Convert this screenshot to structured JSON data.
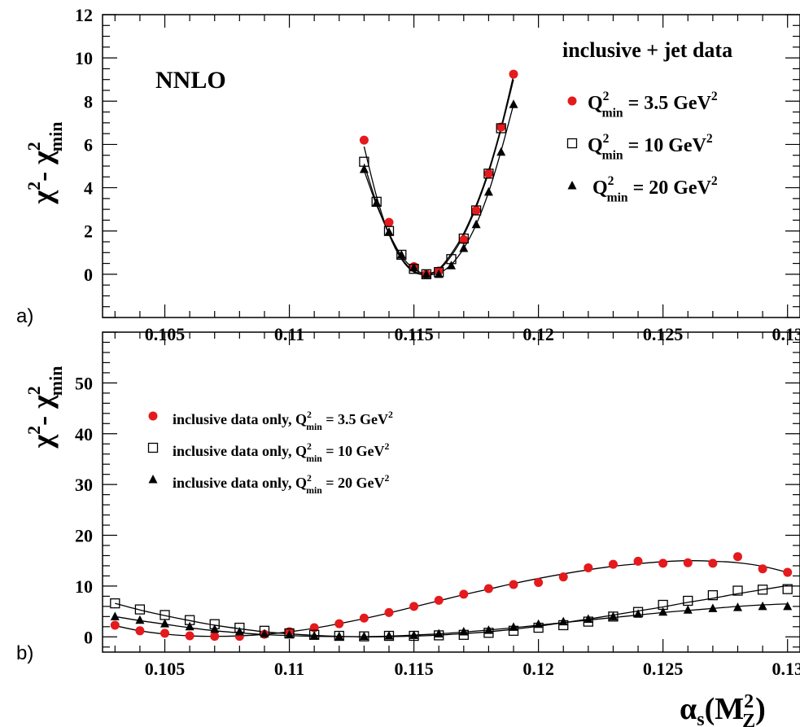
{
  "chart_data": [
    {
      "panel_label": "a)",
      "type": "scatter",
      "ylabel": {
        "main": "χ",
        "sup1": "2",
        "dash": "- χ",
        "sup2": "2",
        "sub": "min"
      },
      "xlim": [
        0.1025,
        0.1305
      ],
      "ylim": [
        -2,
        12
      ],
      "xticks": [
        {
          "v": 0.105,
          "label": "0.105"
        },
        {
          "v": 0.11,
          "label": "0.11"
        },
        {
          "v": 0.115,
          "label": "0.115"
        },
        {
          "v": 0.12,
          "label": "0.12"
        },
        {
          "v": 0.125,
          "label": "0.125"
        },
        {
          "v": 0.13,
          "label": "0.13"
        }
      ],
      "yticks": [
        0,
        2,
        4,
        6,
        8,
        10,
        12
      ],
      "annotation": "NNLO",
      "legend_title": "inclusive + jet data",
      "legend_placement": "top-right",
      "series": [
        {
          "legend": {
            "pre": "Q",
            "sup": "2",
            "sub": "min",
            "post": " = 3.5 GeV",
            "sup2": "2"
          },
          "marker": "circle",
          "color": "#e41a1c",
          "x": [
            0.113,
            0.114,
            0.115,
            0.1155,
            0.116,
            0.117,
            0.1175,
            0.118,
            0.1185,
            0.119
          ],
          "y": [
            6.2,
            2.4,
            0.35,
            0.0,
            0.15,
            1.6,
            2.95,
            4.65,
            6.8,
            9.25
          ],
          "curve_x": [
            0.113,
            0.1135,
            0.114,
            0.1145,
            0.115,
            0.1155,
            0.116,
            0.1165,
            0.117,
            0.1175,
            0.118,
            0.1185,
            0.119
          ],
          "curve_y": [
            5.9,
            3.6,
            1.85,
            0.7,
            0.1,
            0.0,
            0.25,
            0.95,
            1.9,
            3.2,
            4.8,
            6.8,
            9.2
          ]
        },
        {
          "legend": {
            "pre": "Q",
            "sup": "2",
            "sub": "min",
            "post": " = 10 GeV",
            "sup2": "2"
          },
          "marker": "square",
          "color": "#000000",
          "x": [
            0.113,
            0.1135,
            0.114,
            0.1145,
            0.115,
            0.1155,
            0.116,
            0.1165,
            0.117,
            0.1175,
            0.118,
            0.1185
          ],
          "y": [
            5.2,
            3.35,
            2.0,
            0.9,
            0.25,
            0.0,
            0.1,
            0.7,
            1.65,
            2.95,
            4.65,
            6.75
          ],
          "curve_x": [
            0.113,
            0.1135,
            0.114,
            0.1145,
            0.115,
            0.1155,
            0.116,
            0.1165,
            0.117,
            0.1175,
            0.118,
            0.1185,
            0.119
          ],
          "curve_y": [
            5.1,
            3.3,
            1.85,
            0.75,
            0.15,
            0.0,
            0.2,
            0.85,
            1.8,
            3.1,
            4.7,
            6.7,
            9.0
          ]
        },
        {
          "legend": {
            "pre": "Q",
            "sup": "2",
            "sub": "min",
            "post": " = 20 GeV",
            "sup2": "2"
          },
          "marker": "triangle",
          "color": "#000000",
          "x": [
            0.113,
            0.1135,
            0.114,
            0.1145,
            0.115,
            0.1155,
            0.116,
            0.1165,
            0.117,
            0.1175,
            0.118,
            0.1185,
            0.119
          ],
          "y": [
            4.85,
            3.3,
            1.95,
            0.9,
            0.3,
            0.0,
            0.0,
            0.4,
            1.2,
            2.3,
            3.8,
            5.65,
            7.85
          ],
          "curve_x": [
            0.113,
            0.1135,
            0.114,
            0.1145,
            0.115,
            0.1155,
            0.116,
            0.1165,
            0.117,
            0.1175,
            0.118,
            0.1185,
            0.119
          ],
          "curve_y": [
            4.8,
            3.2,
            1.9,
            0.85,
            0.25,
            0.0,
            0.05,
            0.45,
            1.2,
            2.3,
            3.8,
            5.7,
            7.85
          ]
        }
      ]
    },
    {
      "panel_label": "b)",
      "type": "scatter",
      "ylabel": {
        "main": "χ",
        "sup1": "2",
        "dash": "- χ",
        "sup2": "2",
        "sub": "min"
      },
      "xlabel": {
        "main": "α",
        "sub": "s",
        "open": "(M",
        "sup": "2",
        "sub2": "Z",
        "close": ")"
      },
      "xlim": [
        0.1025,
        0.1305
      ],
      "ylim": [
        -3,
        60
      ],
      "xticks": [
        {
          "v": 0.105,
          "label": "0.105"
        },
        {
          "v": 0.11,
          "label": "0.11"
        },
        {
          "v": 0.115,
          "label": "0.115"
        },
        {
          "v": 0.12,
          "label": "0.12"
        },
        {
          "v": 0.125,
          "label": "0.125"
        },
        {
          "v": 0.13,
          "label": "0.13"
        }
      ],
      "yticks": [
        0,
        10,
        20,
        30,
        40,
        50
      ],
      "legend_placement": "top-left",
      "series": [
        {
          "legend": {
            "pre": "inclusive data only, Q",
            "sup": "2",
            "sub": "min",
            "post": " =  3.5 GeV",
            "sup2": "2"
          },
          "marker": "circle",
          "color": "#e41a1c",
          "x": [
            0.103,
            0.104,
            0.105,
            0.106,
            0.107,
            0.108,
            0.109,
            0.11,
            0.111,
            0.112,
            0.113,
            0.114,
            0.115,
            0.116,
            0.117,
            0.118,
            0.119,
            0.12,
            0.121,
            0.122,
            0.123,
            0.124,
            0.125,
            0.126,
            0.127,
            0.128,
            0.129,
            0.13
          ],
          "y": [
            2.3,
            1.2,
            0.7,
            0.2,
            0.1,
            0.1,
            0.5,
            1.0,
            1.8,
            2.6,
            3.7,
            4.8,
            6.0,
            7.2,
            8.4,
            9.5,
            10.3,
            10.7,
            11.8,
            13.6,
            14.3,
            14.9,
            14.5,
            14.6,
            14.5,
            15.8,
            13.4,
            12.7
          ],
          "curve_x": [
            0.103,
            0.104,
            0.105,
            0.106,
            0.107,
            0.108,
            0.109,
            0.11,
            0.111,
            0.112,
            0.113,
            0.114,
            0.115,
            0.116,
            0.117,
            0.118,
            0.119,
            0.12,
            0.121,
            0.122,
            0.123,
            0.124,
            0.125,
            0.126,
            0.127,
            0.128,
            0.129,
            0.13
          ],
          "curve_y": [
            2.2,
            1.2,
            0.55,
            0.2,
            0.1,
            0.2,
            0.5,
            1.0,
            1.7,
            2.6,
            3.6,
            4.7,
            5.9,
            7.1,
            8.3,
            9.4,
            10.5,
            11.5,
            12.4,
            13.2,
            13.9,
            14.4,
            14.8,
            15.0,
            14.9,
            14.6,
            13.9,
            12.7
          ]
        },
        {
          "legend": {
            "pre": "inclusive data only, Q",
            "sup": "2",
            "sub": "min",
            "post": " =  10 GeV",
            "sup2": "2"
          },
          "marker": "square",
          "color": "#000000",
          "x": [
            0.103,
            0.104,
            0.105,
            0.106,
            0.107,
            0.108,
            0.109,
            0.11,
            0.111,
            0.112,
            0.113,
            0.114,
            0.115,
            0.116,
            0.117,
            0.118,
            0.119,
            0.12,
            0.121,
            0.122,
            0.123,
            0.124,
            0.125,
            0.126,
            0.127,
            0.128,
            0.129,
            0.13
          ],
          "y": [
            6.6,
            5.4,
            4.3,
            3.3,
            2.5,
            1.8,
            1.2,
            0.7,
            0.4,
            0.2,
            0.1,
            0.2,
            0.2,
            0.3,
            0.4,
            0.8,
            1.2,
            1.8,
            2.3,
            3.0,
            4.0,
            4.9,
            6.3,
            7.1,
            8.2,
            9.1,
            9.3,
            9.4
          ],
          "curve_x": [
            0.103,
            0.104,
            0.105,
            0.106,
            0.107,
            0.108,
            0.109,
            0.11,
            0.111,
            0.112,
            0.113,
            0.114,
            0.115,
            0.116,
            0.117,
            0.118,
            0.119,
            0.12,
            0.121,
            0.122,
            0.123,
            0.124,
            0.125,
            0.126,
            0.127,
            0.128,
            0.129,
            0.13
          ],
          "curve_y": [
            6.6,
            5.3,
            4.2,
            3.2,
            2.3,
            1.6,
            1.0,
            0.6,
            0.3,
            0.1,
            0.0,
            0.05,
            0.15,
            0.35,
            0.65,
            1.0,
            1.5,
            2.1,
            2.8,
            3.5,
            4.3,
            5.1,
            5.9,
            6.8,
            7.6,
            8.5,
            9.3,
            10.1
          ]
        },
        {
          "legend": {
            "pre": "inclusive data only, Q",
            "sup": "2",
            "sub": "min",
            "post": " =  20 GeV",
            "sup2": "2"
          },
          "marker": "triangle",
          "color": "#000000",
          "x": [
            0.103,
            0.104,
            0.105,
            0.106,
            0.107,
            0.108,
            0.109,
            0.11,
            0.111,
            0.112,
            0.113,
            0.114,
            0.115,
            0.116,
            0.117,
            0.118,
            0.119,
            0.12,
            0.121,
            0.122,
            0.123,
            0.124,
            0.125,
            0.126,
            0.127,
            0.128,
            0.129,
            0.13
          ],
          "y": [
            4.0,
            3.3,
            2.6,
            2.0,
            1.5,
            1.0,
            0.6,
            0.4,
            0.2,
            0.1,
            0.1,
            0.2,
            0.3,
            0.6,
            1.0,
            1.3,
            1.9,
            2.5,
            3.0,
            3.5,
            4.0,
            4.5,
            4.9,
            5.3,
            5.6,
            5.8,
            6.0,
            6.0
          ],
          "curve_x": [
            0.103,
            0.104,
            0.105,
            0.106,
            0.107,
            0.108,
            0.109,
            0.11,
            0.111,
            0.112,
            0.113,
            0.114,
            0.115,
            0.116,
            0.117,
            0.118,
            0.119,
            0.12,
            0.121,
            0.122,
            0.123,
            0.124,
            0.125,
            0.126,
            0.127,
            0.128,
            0.129,
            0.13
          ],
          "curve_y": [
            4.0,
            3.2,
            2.5,
            1.8,
            1.2,
            0.8,
            0.45,
            0.25,
            0.1,
            0.05,
            0.05,
            0.15,
            0.35,
            0.6,
            0.95,
            1.35,
            1.8,
            2.3,
            2.8,
            3.3,
            3.8,
            4.3,
            4.8,
            5.2,
            5.6,
            6.0,
            6.3,
            6.5
          ]
        }
      ]
    }
  ]
}
